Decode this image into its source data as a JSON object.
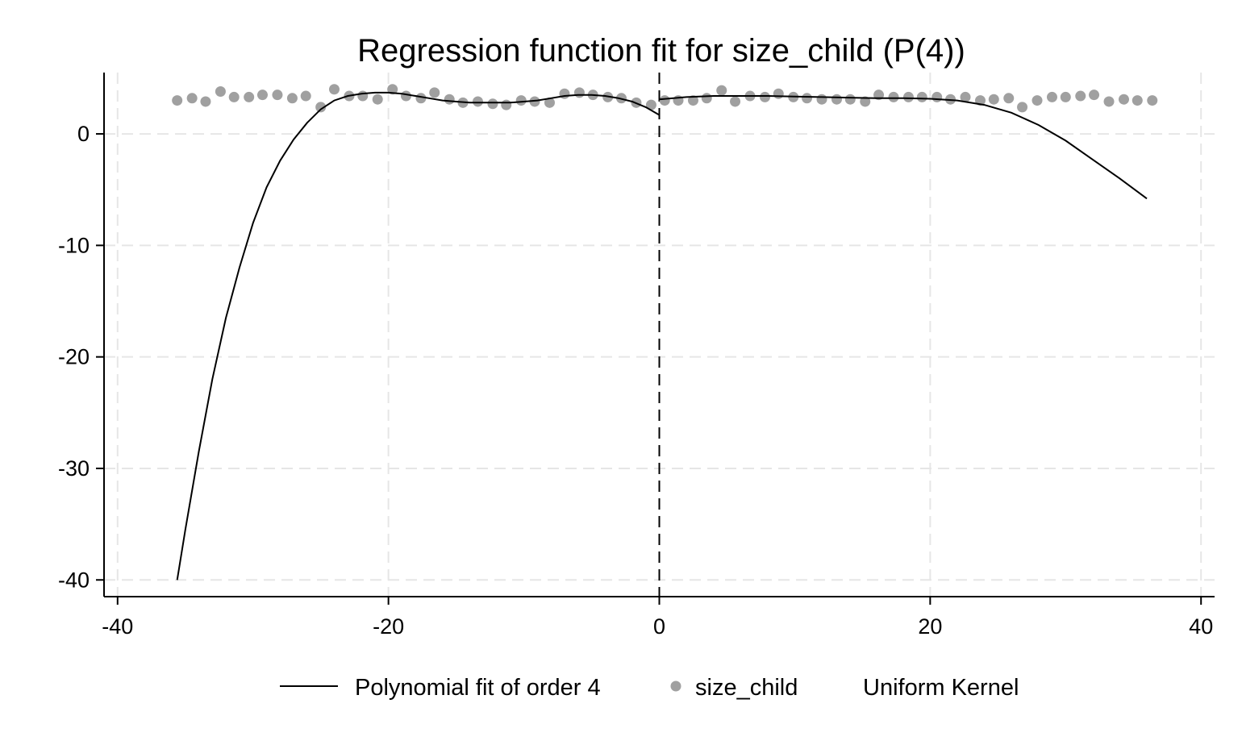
{
  "chart_data": {
    "type": "scatter",
    "title": "Regression function fit for size_child (P(4))",
    "xlabel": "",
    "ylabel": "",
    "xlim": [
      -41,
      41
    ],
    "ylim": [
      -41.5,
      5.5
    ],
    "xticks": [
      -40,
      -20,
      0,
      20,
      40
    ],
    "xtick_labels": [
      "-40",
      "-20",
      "0",
      "20",
      "40"
    ],
    "yticks": [
      0,
      -10,
      -20,
      -30,
      -40
    ],
    "ytick_labels": [
      "0",
      "-10",
      "-20",
      "-30",
      "-40"
    ],
    "grid": true,
    "cutoff": 0,
    "legend_position": "bottom",
    "legend": {
      "fit_label": "Polynomial fit of order 4",
      "points_label": "size_child",
      "kernel_label": "Uniform Kernel"
    },
    "colors": {
      "points": "#a0a0a0",
      "fit": "#000000",
      "grid": "#e6e6e6",
      "cutoff": "#000000"
    },
    "series": [
      {
        "name": "size_child",
        "kind": "points",
        "points": [
          [
            -35.6,
            3.0
          ],
          [
            -34.5,
            3.2
          ],
          [
            -33.5,
            2.9
          ],
          [
            -32.4,
            3.8
          ],
          [
            -31.4,
            3.3
          ],
          [
            -30.3,
            3.3
          ],
          [
            -29.3,
            3.5
          ],
          [
            -28.2,
            3.5
          ],
          [
            -27.1,
            3.2
          ],
          [
            -26.1,
            3.4
          ],
          [
            -25.0,
            2.4
          ],
          [
            -24.0,
            4.0
          ],
          [
            -22.9,
            3.4
          ],
          [
            -21.9,
            3.4
          ],
          [
            -20.8,
            3.1
          ],
          [
            -19.7,
            4.0
          ],
          [
            -18.7,
            3.4
          ],
          [
            -17.6,
            3.2
          ],
          [
            -16.6,
            3.7
          ],
          [
            -15.5,
            3.1
          ],
          [
            -14.5,
            2.8
          ],
          [
            -13.4,
            2.9
          ],
          [
            -12.3,
            2.7
          ],
          [
            -11.3,
            2.6
          ],
          [
            -10.2,
            3.0
          ],
          [
            -9.2,
            2.9
          ],
          [
            -8.1,
            2.8
          ],
          [
            -7.0,
            3.6
          ],
          [
            -5.9,
            3.7
          ],
          [
            -4.9,
            3.5
          ],
          [
            -3.8,
            3.3
          ],
          [
            -2.8,
            3.2
          ],
          [
            -1.7,
            2.8
          ],
          [
            -0.6,
            2.6
          ],
          [
            0.4,
            3.0
          ],
          [
            1.4,
            3.0
          ],
          [
            2.5,
            3.0
          ],
          [
            3.5,
            3.2
          ],
          [
            4.6,
            3.9
          ],
          [
            5.6,
            2.9
          ],
          [
            6.7,
            3.4
          ],
          [
            7.8,
            3.3
          ],
          [
            8.8,
            3.6
          ],
          [
            9.9,
            3.3
          ],
          [
            10.9,
            3.2
          ],
          [
            12.0,
            3.1
          ],
          [
            13.1,
            3.1
          ],
          [
            14.1,
            3.1
          ],
          [
            15.2,
            2.9
          ],
          [
            16.2,
            3.5
          ],
          [
            17.3,
            3.3
          ],
          [
            18.4,
            3.3
          ],
          [
            19.4,
            3.3
          ],
          [
            20.5,
            3.3
          ],
          [
            21.5,
            3.1
          ],
          [
            22.6,
            3.3
          ],
          [
            23.7,
            3.0
          ],
          [
            24.7,
            3.1
          ],
          [
            25.8,
            3.2
          ],
          [
            26.8,
            2.4
          ],
          [
            27.9,
            3.0
          ],
          [
            29.0,
            3.3
          ],
          [
            30.0,
            3.3
          ],
          [
            31.1,
            3.4
          ],
          [
            32.1,
            3.5
          ],
          [
            33.2,
            2.9
          ],
          [
            34.3,
            3.1
          ],
          [
            35.3,
            3.0
          ],
          [
            36.4,
            3.0
          ]
        ]
      },
      {
        "name": "Polynomial fit of order 4",
        "kind": "fit-left",
        "points": [
          [
            -35.6,
            -40.0
          ],
          [
            -35.0,
            -35.5
          ],
          [
            -34.0,
            -28.5
          ],
          [
            -33.0,
            -22.0
          ],
          [
            -32.0,
            -16.5
          ],
          [
            -31.0,
            -12.0
          ],
          [
            -30.0,
            -8.0
          ],
          [
            -29.0,
            -4.8
          ],
          [
            -28.0,
            -2.4
          ],
          [
            -27.0,
            -0.5
          ],
          [
            -26.0,
            1.0
          ],
          [
            -25.0,
            2.2
          ],
          [
            -24.0,
            3.0
          ],
          [
            -23.0,
            3.4
          ],
          [
            -22.0,
            3.6
          ],
          [
            -21.0,
            3.7
          ],
          [
            -20.0,
            3.7
          ],
          [
            -19.0,
            3.6
          ],
          [
            -18.0,
            3.4
          ],
          [
            -17.0,
            3.2
          ],
          [
            -16.0,
            3.0
          ],
          [
            -15.0,
            2.9
          ],
          [
            -14.0,
            2.8
          ],
          [
            -13.0,
            2.8
          ],
          [
            -12.0,
            2.8
          ],
          [
            -11.0,
            2.8
          ],
          [
            -10.0,
            2.9
          ],
          [
            -9.0,
            3.0
          ],
          [
            -8.0,
            3.2
          ],
          [
            -7.0,
            3.4
          ],
          [
            -6.0,
            3.5
          ],
          [
            -5.0,
            3.5
          ],
          [
            -4.0,
            3.4
          ],
          [
            -3.0,
            3.2
          ],
          [
            -2.0,
            2.9
          ],
          [
            -1.0,
            2.4
          ],
          [
            0.0,
            1.7
          ]
        ]
      },
      {
        "name": "Polynomial fit of order 4",
        "kind": "fit-right",
        "points": [
          [
            0.0,
            3.1
          ],
          [
            2.0,
            3.3
          ],
          [
            4.0,
            3.4
          ],
          [
            6.0,
            3.4
          ],
          [
            8.0,
            3.4
          ],
          [
            10.0,
            3.35
          ],
          [
            12.0,
            3.3
          ],
          [
            14.0,
            3.25
          ],
          [
            16.0,
            3.2
          ],
          [
            18.0,
            3.2
          ],
          [
            20.0,
            3.15
          ],
          [
            22.0,
            3.0
          ],
          [
            24.0,
            2.6
          ],
          [
            26.0,
            1.9
          ],
          [
            28.0,
            0.8
          ],
          [
            30.0,
            -0.6
          ],
          [
            32.0,
            -2.3
          ],
          [
            34.0,
            -4.0
          ],
          [
            36.0,
            -5.8
          ]
        ]
      }
    ]
  }
}
